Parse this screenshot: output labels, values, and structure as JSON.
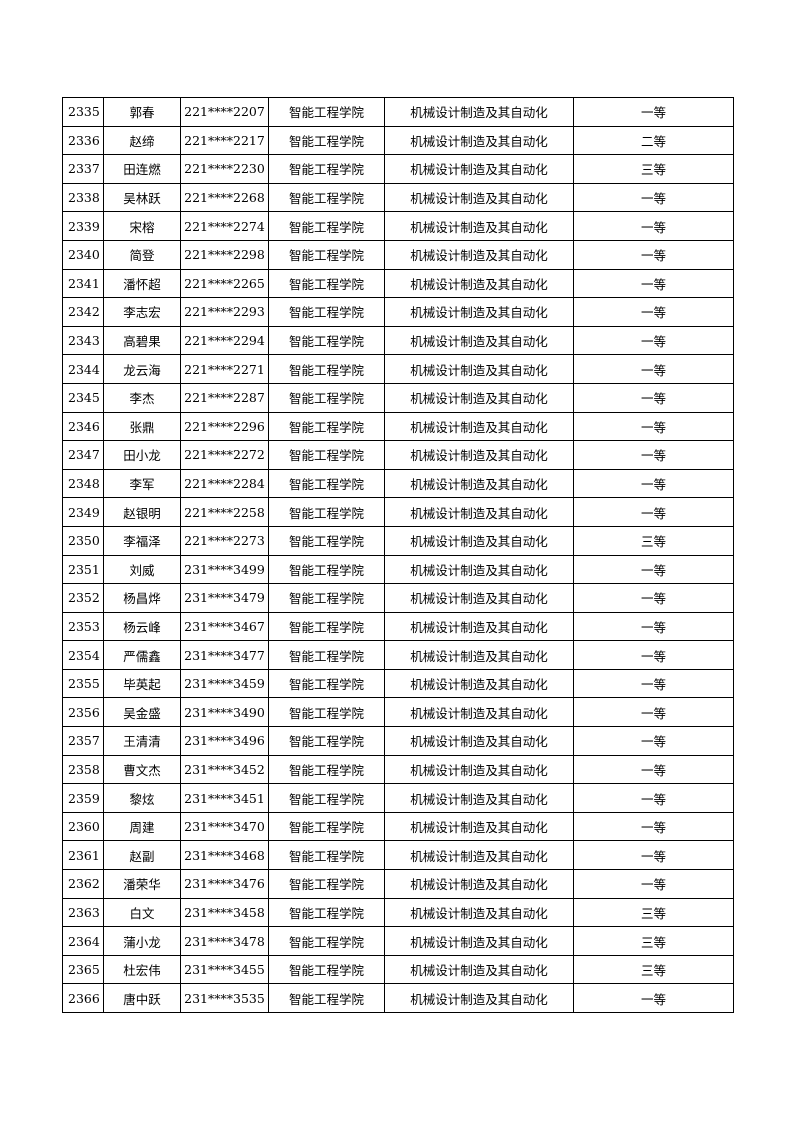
{
  "rows": [
    [
      "2335",
      "郭春",
      "221****2207",
      "智能工程学院",
      "机械设计制造及其自动化",
      "一等"
    ],
    [
      "2336",
      "赵缔",
      "221****2217",
      "智能工程学院",
      "机械设计制造及其自动化",
      "二等"
    ],
    [
      "2337",
      "田连燃",
      "221****2230",
      "智能工程学院",
      "机械设计制造及其自动化",
      "三等"
    ],
    [
      "2338",
      "吴林跃",
      "221****2268",
      "智能工程学院",
      "机械设计制造及其自动化",
      "一等"
    ],
    [
      "2339",
      "宋榕",
      "221****2274",
      "智能工程学院",
      "机械设计制造及其自动化",
      "一等"
    ],
    [
      "2340",
      "简登",
      "221****2298",
      "智能工程学院",
      "机械设计制造及其自动化",
      "一等"
    ],
    [
      "2341",
      "潘怀超",
      "221****2265",
      "智能工程学院",
      "机械设计制造及其自动化",
      "一等"
    ],
    [
      "2342",
      "李志宏",
      "221****2293",
      "智能工程学院",
      "机械设计制造及其自动化",
      "一等"
    ],
    [
      "2343",
      "高碧果",
      "221****2294",
      "智能工程学院",
      "机械设计制造及其自动化",
      "一等"
    ],
    [
      "2344",
      "龙云海",
      "221****2271",
      "智能工程学院",
      "机械设计制造及其自动化",
      "一等"
    ],
    [
      "2345",
      "李杰",
      "221****2287",
      "智能工程学院",
      "机械设计制造及其自动化",
      "一等"
    ],
    [
      "2346",
      "张鼎",
      "221****2296",
      "智能工程学院",
      "机械设计制造及其自动化",
      "一等"
    ],
    [
      "2347",
      "田小龙",
      "221****2272",
      "智能工程学院",
      "机械设计制造及其自动化",
      "一等"
    ],
    [
      "2348",
      "李军",
      "221****2284",
      "智能工程学院",
      "机械设计制造及其自动化",
      "一等"
    ],
    [
      "2349",
      "赵银明",
      "221****2258",
      "智能工程学院",
      "机械设计制造及其自动化",
      "一等"
    ],
    [
      "2350",
      "李福泽",
      "221****2273",
      "智能工程学院",
      "机械设计制造及其自动化",
      "三等"
    ],
    [
      "2351",
      "刘威",
      "231****3499",
      "智能工程学院",
      "机械设计制造及其自动化",
      "一等"
    ],
    [
      "2352",
      "杨昌烨",
      "231****3479",
      "智能工程学院",
      "机械设计制造及其自动化",
      "一等"
    ],
    [
      "2353",
      "杨云峰",
      "231****3467",
      "智能工程学院",
      "机械设计制造及其自动化",
      "一等"
    ],
    [
      "2354",
      "严儒鑫",
      "231****3477",
      "智能工程学院",
      "机械设计制造及其自动化",
      "一等"
    ],
    [
      "2355",
      "毕英起",
      "231****3459",
      "智能工程学院",
      "机械设计制造及其自动化",
      "一等"
    ],
    [
      "2356",
      "吴金盛",
      "231****3490",
      "智能工程学院",
      "机械设计制造及其自动化",
      "一等"
    ],
    [
      "2357",
      "王清清",
      "231****3496",
      "智能工程学院",
      "机械设计制造及其自动化",
      "一等"
    ],
    [
      "2358",
      "曹文杰",
      "231****3452",
      "智能工程学院",
      "机械设计制造及其自动化",
      "一等"
    ],
    [
      "2359",
      "黎炫",
      "231****3451",
      "智能工程学院",
      "机械设计制造及其自动化",
      "一等"
    ],
    [
      "2360",
      "周建",
      "231****3470",
      "智能工程学院",
      "机械设计制造及其自动化",
      "一等"
    ],
    [
      "2361",
      "赵副",
      "231****3468",
      "智能工程学院",
      "机械设计制造及其自动化",
      "一等"
    ],
    [
      "2362",
      "潘荣华",
      "231****3476",
      "智能工程学院",
      "机械设计制造及其自动化",
      "一等"
    ],
    [
      "2363",
      "白文",
      "231****3458",
      "智能工程学院",
      "机械设计制造及其自动化",
      "三等"
    ],
    [
      "2364",
      "蒲小龙",
      "231****3478",
      "智能工程学院",
      "机械设计制造及其自动化",
      "三等"
    ],
    [
      "2365",
      "杜宏伟",
      "231****3455",
      "智能工程学院",
      "机械设计制造及其自动化",
      "三等"
    ],
    [
      "2366",
      "唐中跃",
      "231****3535",
      "智能工程学院",
      "机械设计制造及其自动化",
      "一等"
    ]
  ]
}
